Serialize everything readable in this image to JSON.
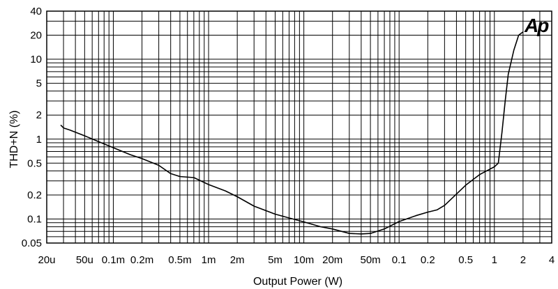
{
  "chart_data": {
    "type": "line",
    "xlabel": "Output Power (W)",
    "ylabel": "THD+N (%)",
    "x_scale": "log",
    "y_scale": "log",
    "xlim": [
      2e-05,
      4
    ],
    "ylim": [
      0.05,
      40
    ],
    "grid": true,
    "x_ticks": [
      {
        "value": 2e-05,
        "label": "20u"
      },
      {
        "value": 5e-05,
        "label": "50u"
      },
      {
        "value": 0.0001,
        "label": "0.1m"
      },
      {
        "value": 0.0002,
        "label": "0.2m"
      },
      {
        "value": 0.0005,
        "label": "0.5m"
      },
      {
        "value": 0.001,
        "label": "1m"
      },
      {
        "value": 0.002,
        "label": "2m"
      },
      {
        "value": 0.005,
        "label": "5m"
      },
      {
        "value": 0.01,
        "label": "10m"
      },
      {
        "value": 0.02,
        "label": "20m"
      },
      {
        "value": 0.05,
        "label": "50m"
      },
      {
        "value": 0.1,
        "label": "0.1"
      },
      {
        "value": 0.2,
        "label": "0.2"
      },
      {
        "value": 0.5,
        "label": "0.5"
      },
      {
        "value": 1,
        "label": "1"
      },
      {
        "value": 2,
        "label": "2"
      },
      {
        "value": 4,
        "label": "4"
      }
    ],
    "y_ticks": [
      {
        "value": 0.05,
        "label": "0.05"
      },
      {
        "value": 0.1,
        "label": "0.1"
      },
      {
        "value": 0.2,
        "label": "0.2"
      },
      {
        "value": 0.5,
        "label": "0.5"
      },
      {
        "value": 1,
        "label": "1"
      },
      {
        "value": 2,
        "label": "2"
      },
      {
        "value": 5,
        "label": "5"
      },
      {
        "value": 10,
        "label": "10"
      },
      {
        "value": 20,
        "label": "20"
      },
      {
        "value": 40,
        "label": "40"
      }
    ],
    "series": [
      {
        "color": "#000000",
        "x": [
          2.8e-05,
          3e-05,
          3.5e-05,
          5e-05,
          7e-05,
          0.0001,
          0.00015,
          0.0002,
          0.0003,
          0.0004,
          0.0005,
          0.0007,
          0.001,
          0.0015,
          0.002,
          0.003,
          0.005,
          0.007,
          0.01,
          0.015,
          0.02,
          0.03,
          0.04,
          0.05,
          0.07,
          0.1,
          0.15,
          0.2,
          0.25,
          0.3,
          0.5,
          0.7,
          1.0,
          1.1,
          1.2,
          1.3,
          1.4,
          1.6,
          1.8,
          2.0
        ],
        "y": [
          1.5,
          1.38,
          1.3,
          1.1,
          0.93,
          0.78,
          0.64,
          0.57,
          0.47,
          0.37,
          0.34,
          0.33,
          0.27,
          0.225,
          0.19,
          0.145,
          0.115,
          0.103,
          0.092,
          0.08,
          0.075,
          0.066,
          0.065,
          0.066,
          0.075,
          0.093,
          0.11,
          0.122,
          0.13,
          0.148,
          0.265,
          0.36,
          0.45,
          0.5,
          1.2,
          3.0,
          6.5,
          13.0,
          20.0,
          22.0
        ]
      }
    ]
  },
  "logo": {
    "text": "Ap"
  }
}
